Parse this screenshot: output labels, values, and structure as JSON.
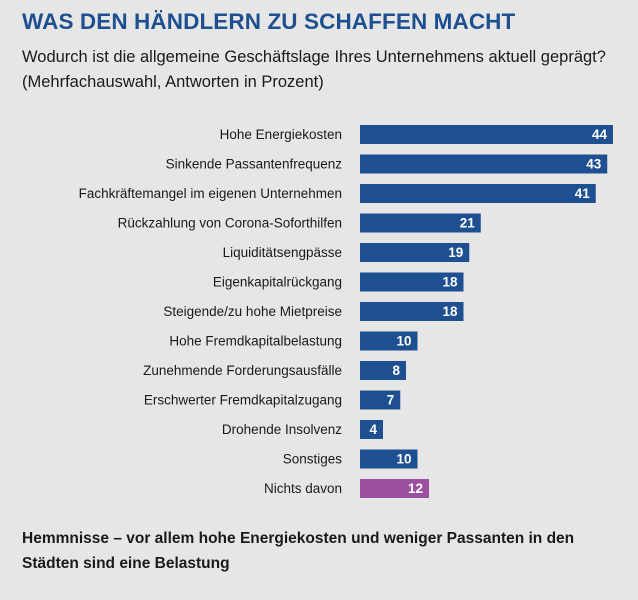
{
  "header": {
    "title": "WAS DEN HÄNDLERN ZU SCHAFFEN MACHT",
    "subtitle": "Wodurch ist die allgemeine Geschäftslage Ihres Unternehmens aktuell geprägt? (Mehrfachauswahl, Antworten in Prozent)"
  },
  "footer": {
    "text": "Hemmnisse – vor allem hohe Energiekosten und weniger Passanten in den Städten sind eine Belastung"
  },
  "chart_data": {
    "type": "bar",
    "orientation": "horizontal",
    "title": "",
    "xlabel": "",
    "ylabel": "",
    "xlim": [
      0,
      44
    ],
    "grid": false,
    "legend": "none",
    "data_labels": true,
    "categories": [
      "Hohe Energiekosten",
      "Sinkende Passantenfrequenz",
      "Fachkräftemangel im eigenen Unternehmen",
      "Rückzahlung von Corona-Soforthilfen",
      "Liquiditätsengpässe",
      "Eigenkapitalrückgang",
      "Steigende/zu hohe Mietpreise",
      "Hohe Fremdkapitalbelastung",
      "Zunehmende Forderungsausfälle",
      "Erschwerter Fremdkapitalzugang",
      "Drohende Insolvenz",
      "Sonstiges",
      "Nichts davon"
    ],
    "values": [
      44,
      43,
      41,
      21,
      19,
      18,
      18,
      10,
      8,
      7,
      4,
      10,
      12
    ],
    "colors": {
      "primary": "#1d4f91",
      "highlight": "#9b4f9f",
      "title": "#1d4f91",
      "background": "#e6e6e6"
    },
    "highlight_categories": [
      "Nichts davon"
    ]
  }
}
